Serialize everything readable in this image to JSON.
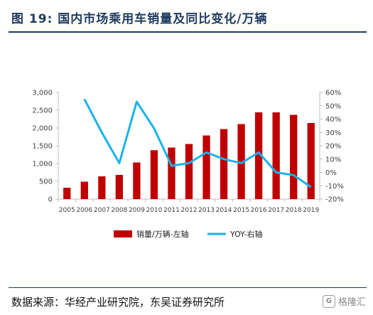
{
  "header": {
    "title": "图 19:  国内市场乘用车销量及同比变化/万辆"
  },
  "footer": {
    "source": "数据来源：华经产业研究院，东吴证券研究所"
  },
  "watermark": {
    "badge": "G",
    "text": "格隆汇"
  },
  "colors": {
    "bar": "#c00000",
    "line": "#1ab2ea",
    "axis": "#bfbfbf",
    "text": "#404040",
    "title": "#1f3a5f"
  },
  "chart_data": {
    "type": "bar",
    "title": "",
    "categories": [
      "2005",
      "2006",
      "2007",
      "2008",
      "2009",
      "2010",
      "2011",
      "2012",
      "2013",
      "2014",
      "2015",
      "2016",
      "2017",
      "2018",
      "2019"
    ],
    "series": [
      {
        "name": "销量/万辆-左轴",
        "type": "bar",
        "axis": "left",
        "values": [
          320,
          490,
          640,
          680,
          1030,
          1375,
          1450,
          1550,
          1790,
          1970,
          2110,
          2440,
          2440,
          2370,
          2140
        ]
      },
      {
        "name": "YOY-右轴",
        "type": "line",
        "axis": "right",
        "values": [
          null,
          55,
          30,
          7,
          53,
          33,
          5,
          7,
          15,
          10,
          7,
          15,
          0,
          -2,
          -11
        ]
      }
    ],
    "y_left": {
      "min": 0,
      "max": 3000,
      "step": 500,
      "tick_labels": [
        "0",
        "500",
        "1,000",
        "1,500",
        "2,000",
        "2,500",
        "3,000"
      ]
    },
    "y_right": {
      "min": -20,
      "max": 60,
      "step": 10,
      "tick_labels": [
        "-20%",
        "-10%",
        "0%",
        "10%",
        "20%",
        "30%",
        "40%",
        "50%",
        "60%"
      ]
    },
    "xlabel": "",
    "ylabel": "",
    "grid": false,
    "legend_position": "bottom"
  }
}
